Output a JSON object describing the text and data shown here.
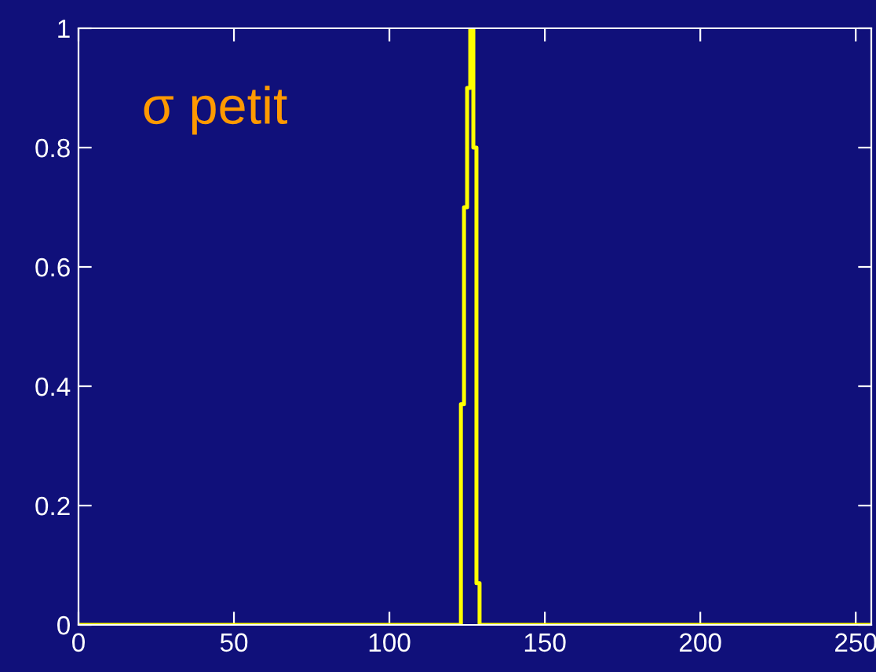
{
  "chart_data": {
    "type": "step",
    "x": [
      0,
      123,
      124,
      125,
      126,
      127,
      128,
      129,
      255
    ],
    "series": [
      {
        "color": "#ffff00",
        "values": [
          0,
          0.37,
          0.7,
          0.9,
          1,
          0.8,
          0.07,
          0,
          0
        ]
      }
    ],
    "xlim": [
      0,
      255
    ],
    "ylim": [
      0,
      1
    ],
    "xticks": [
      0,
      50,
      100,
      150,
      200,
      250
    ],
    "yticks": [
      0,
      0.2,
      0.4,
      0.6,
      0.8,
      1
    ],
    "annotations": [
      "σ petit"
    ],
    "grid": false,
    "legend": false
  }
}
